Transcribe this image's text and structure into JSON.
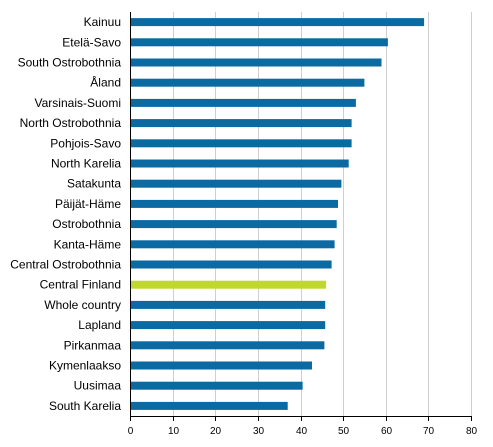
{
  "chart_data": {
    "type": "bar",
    "orientation": "horizontal",
    "categories": [
      "Kainuu",
      "Etelä-Savo",
      "South Ostrobothnia",
      "Åland",
      "Varsinais-Suomi",
      "North Ostrobothnia",
      "Pohjois-Savo",
      "North Karelia",
      "Satakunta",
      "Päijät-Häme",
      "Ostrobothnia",
      "Kanta-Häme",
      "Central Ostrobothnia",
      "Central Finland",
      "Whole country",
      "Lapland",
      "Pirkanmaa",
      "Kymenlaakso",
      "Uusimaa",
      "South Karelia"
    ],
    "values": [
      69,
      60.5,
      59,
      55,
      53,
      52,
      52,
      51.3,
      49.6,
      48.8,
      48.5,
      48,
      47.3,
      46,
      45.8,
      45.8,
      45.6,
      42.7,
      40.5,
      37
    ],
    "highlight": "Central Finland",
    "xlim": [
      0,
      80
    ],
    "xticks": [
      0,
      10,
      20,
      30,
      40,
      50,
      60,
      70,
      80
    ],
    "grid": true,
    "title": "",
    "xlabel": "",
    "ylabel": "",
    "colors": {
      "bar": "#0a6aa1",
      "highlight": "#bfd730",
      "grid": "#cfcfcf",
      "axis": "#000000"
    }
  }
}
